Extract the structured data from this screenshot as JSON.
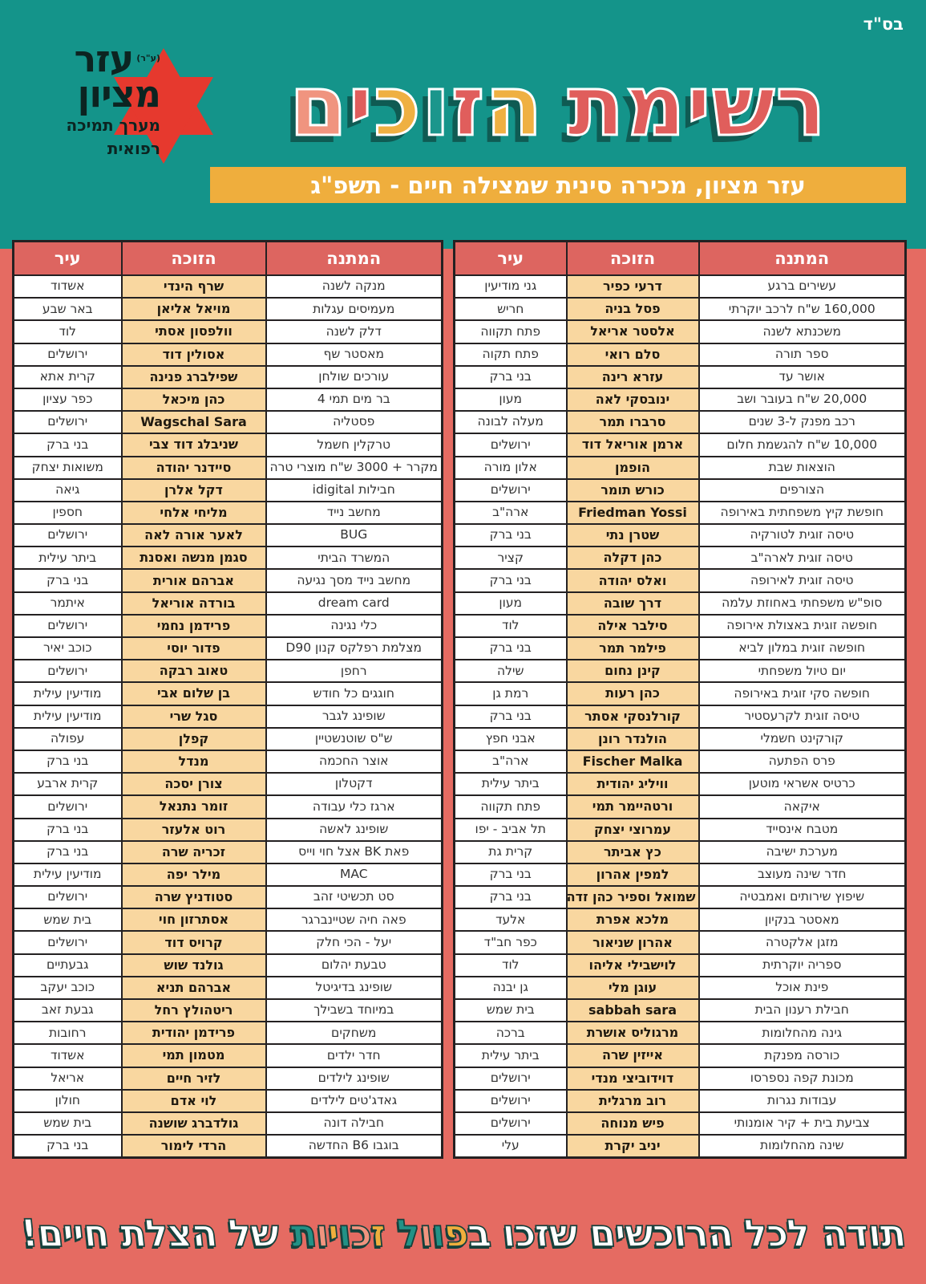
{
  "page": {
    "bsd": "בס\"ד"
  },
  "logo": {
    "org_word1": "עזר",
    "org_suffix": "(ע\"ר)",
    "org_word2": "מציון",
    "tagline_line1": "מערך תמיכה",
    "tagline_line2": "רפואית"
  },
  "title": {
    "words": [
      {
        "letters": [
          {
            "ch": "ר",
            "color": "#e05e5c"
          },
          {
            "ch": "ש",
            "color": "#e05e5c"
          },
          {
            "ch": "י",
            "color": "#e05e5c"
          },
          {
            "ch": "מ",
            "color": "#e05e5c"
          },
          {
            "ch": "ת",
            "color": "#e05e5c"
          }
        ]
      },
      {
        "letters": [
          {
            "ch": "ה",
            "color": "#efb042"
          },
          {
            "ch": "ז",
            "color": "#e05e5c"
          },
          {
            "ch": "ו",
            "color": "#1b968c"
          },
          {
            "ch": "כ",
            "color": "#efb042"
          },
          {
            "ch": "י",
            "color": "#e05e5c"
          },
          {
            "ch": "ם",
            "color": "#f0947f"
          }
        ]
      }
    ]
  },
  "subtitle": {
    "text": "עזר מציון, מכירה סינית שמצילה חיים - תשפ\"ג"
  },
  "tables": {
    "headers": {
      "gift": "המתנה",
      "winner": "הזוכה",
      "city": "עיר"
    },
    "right": {
      "rows": [
        {
          "gift": "עשירים ברגע",
          "winner": "דרעי כפיר",
          "city": "גני מודיעין"
        },
        {
          "gift": "160,000 ש\"ח לרכב יוקרתי",
          "winner": "פסל בניה",
          "city": "חריש"
        },
        {
          "gift": "משכנתא לשנה",
          "winner": "אלסטר אריאל",
          "city": "פתח תקווה"
        },
        {
          "gift": "ספר תורה",
          "winner": "סלם רואי",
          "city": "פתח תקוה"
        },
        {
          "gift": "אושר עד",
          "winner": "עזרא רינה",
          "city": "בני ברק"
        },
        {
          "gift": "20,000 ש\"ח בעובר ושב",
          "winner": "ינובסקי לאה",
          "city": "מעון"
        },
        {
          "gift": "רכב מפנק ל-3 שנים",
          "winner": "סרברו תמר",
          "city": "מעלה לבונה"
        },
        {
          "gift": "10,000 ש\"ח להגשמת חלום",
          "winner": "ארמן אוריאל דוד",
          "city": "ירושלים"
        },
        {
          "gift": "הוצאות שבת",
          "winner": "הופמן",
          "city": "אלון מורה"
        },
        {
          "gift": "הצורפים",
          "winner": "כורש תומר",
          "city": "ירושלים"
        },
        {
          "gift": "חופשת קיץ משפחתית באירופה",
          "winner": "Friedman Yossi",
          "city": "ארה\"ב"
        },
        {
          "gift": "טיסה זוגית לטורקיה",
          "winner": "שטרן נתי",
          "city": "בני ברק"
        },
        {
          "gift": "טיסה זוגית לארה\"ב",
          "winner": "כהן דקלה",
          "city": "קציר"
        },
        {
          "gift": "טיסה זוגית לאירופה",
          "winner": "ואלס יהודה",
          "city": "בני ברק"
        },
        {
          "gift": "סופ\"ש משפחתי באחוזת עלמה",
          "winner": "דרך שובה",
          "city": "מעון"
        },
        {
          "gift": "חופשה זוגית באצולת אירופה",
          "winner": "סילבר אילה",
          "city": "לוד"
        },
        {
          "gift": "חופשה זוגית במלון לביא",
          "winner": "פילמר תמר",
          "city": "בני ברק"
        },
        {
          "gift": "יום טיול משפחתי",
          "winner": "קינן נחום",
          "city": "שילה"
        },
        {
          "gift": "חופשה סקי זוגית באירופה",
          "winner": "כהן רעות",
          "city": "רמת גן"
        },
        {
          "gift": "טיסה זוגית לקרעסטיר",
          "winner": "קורלנסקי אסתר",
          "city": "בני ברק"
        },
        {
          "gift": "קורקינט חשמלי",
          "winner": "הולנדר רונן",
          "city": "אבני חפץ"
        },
        {
          "gift": "פרס הפתעה",
          "winner": "Fischer Malka",
          "city": "ארה\"ב"
        },
        {
          "gift": "כרטיס אשראי מוטען",
          "winner": "וויליג יהודית",
          "city": "ביתר עילית"
        },
        {
          "gift": "איקאה",
          "winner": "ורטהיימר תמי",
          "city": "פתח תקווה"
        },
        {
          "gift": "מטבח אינסייד",
          "winner": "עמרוצי יצחק",
          "city": "תל אביב - יפו"
        },
        {
          "gift": "מערכת ישיבה",
          "winner": "כץ אביתר",
          "city": "קרית גת"
        },
        {
          "gift": "חדר שינה מעוצב",
          "winner": "למפין אהרון",
          "city": "בני ברק"
        },
        {
          "gift": "שיפוץ שירותים ואמבטיה",
          "winner": "שמואל וספיר כהן זדה",
          "city": "בני ברק"
        },
        {
          "gift": "מאסטר בנקיון",
          "winner": "מלכא אפרת",
          "city": "אלעד"
        },
        {
          "gift": "מזגן אלקטרה",
          "winner": "אהרון שניאור",
          "city": "כפר חב\"ד"
        },
        {
          "gift": "ספריה יוקרתית",
          "winner": "לוישבילי אליהו",
          "city": "לוד"
        },
        {
          "gift": "פינת אוכל",
          "winner": "עוגן מלי",
          "city": "גן יבנה"
        },
        {
          "gift": "חבילת רענון הבית",
          "winner": "sabbah sara",
          "city": "בית שמש"
        },
        {
          "gift": "גינה מהחלומות",
          "winner": "מרגוליס אושרת",
          "city": "ברכה"
        },
        {
          "gift": "כורסה מפנקת",
          "winner": "אייזין שרה",
          "city": "ביתר עילית"
        },
        {
          "gift": "מכונת קפה נספרסו",
          "winner": "דוידוביצי מנדי",
          "city": "ירושלים"
        },
        {
          "gift": "עבודות נגרות",
          "winner": "רוב מרגלית",
          "city": "ירושלים"
        },
        {
          "gift": "צביעת בית + קיר אומנותי",
          "winner": "פיש מנוחה",
          "city": "ירושלים"
        },
        {
          "gift": "שינה מהחלומות",
          "winner": "יניב יקרת",
          "city": "עלי"
        }
      ]
    },
    "left": {
      "rows": [
        {
          "gift": "מנקה לשנה",
          "winner": "שרף הינדי",
          "city": "אשדוד"
        },
        {
          "gift": "מעמיסים עגלות",
          "winner": "מויאל אליאן",
          "city": "באר שבע"
        },
        {
          "gift": "דלק לשנה",
          "winner": "וולפסון אסתי",
          "city": "לוד"
        },
        {
          "gift": "מאסטר שף",
          "winner": "אסולין דוד",
          "city": "ירושלים"
        },
        {
          "gift": "עורכים שולחן",
          "winner": "שפילברג פנינה",
          "city": "קרית אתא"
        },
        {
          "gift": "בר מים תמי 4",
          "winner": "כהן מיכאל",
          "city": "כפר עציון"
        },
        {
          "gift": "פסטליה",
          "winner": "Wagschal Sara",
          "city": "ירושלים"
        },
        {
          "gift": "טרקלין חשמל",
          "winner": "שניבלג דוד צבי",
          "city": "בני ברק"
        },
        {
          "gift": "מקרר + 3000 ש\"ח מוצרי טרה",
          "winner": "סיידנר יהודה",
          "city": "משואות יצחק"
        },
        {
          "gift": "חבילות idigital",
          "winner": "דקל אלרן",
          "city": "גיאה"
        },
        {
          "gift": "מחשב נייד",
          "winner": "מליחי אלחי",
          "city": "חספין"
        },
        {
          "gift": "BUG",
          "winner": "לאער אורה לאה",
          "city": "ירושלים"
        },
        {
          "gift": "המשרד הביתי",
          "winner": "סגמן מנשה ואסנת",
          "city": "ביתר עילית"
        },
        {
          "gift": "מחשב נייד מסך נגיעה",
          "winner": "אברהם אורית",
          "city": "בני ברק"
        },
        {
          "gift": "dream card",
          "winner": "בורדה אוריאל",
          "city": "איתמר"
        },
        {
          "gift": "כלי נגינה",
          "winner": "פרידמן נחמי",
          "city": "ירושלים"
        },
        {
          "gift": "מצלמת רפלקס קנון D90",
          "winner": "פדור יוסי",
          "city": "כוכב יאיר"
        },
        {
          "gift": "רחפן",
          "winner": "טאוב רבקה",
          "city": "ירושלים"
        },
        {
          "gift": "חוגגים כל חודש",
          "winner": "בן שלום אבי",
          "city": "מודיעין עילית"
        },
        {
          "gift": "שופינג לגבר",
          "winner": "סגל שרי",
          "city": "מודיעין עילית"
        },
        {
          "gift": "ש\"ס שוטנשטיין",
          "winner": "קפלן",
          "city": "עפולה"
        },
        {
          "gift": "אוצר החכמה",
          "winner": "מנדל",
          "city": "בני ברק"
        },
        {
          "gift": "דקטלון",
          "winner": "צורן יסכה",
          "city": "קרית ארבע"
        },
        {
          "gift": "ארגז כלי עבודה",
          "winner": "זומר נתנאל",
          "city": "ירושלים"
        },
        {
          "gift": "שופינג לאשה",
          "winner": "רוט אלעזר",
          "city": "בני ברק"
        },
        {
          "gift": "פאת BK אצל חוי וייס",
          "winner": "זכריה שרה",
          "city": "בני ברק"
        },
        {
          "gift": "MAC",
          "winner": "מילר יפה",
          "city": "מודיעין עילית"
        },
        {
          "gift": "סט תכשיטי זהב",
          "winner": "סטודניץ שרה",
          "city": "ירושלים"
        },
        {
          "gift": "פאה חיה שטיינברגר",
          "winner": "אסתרזון חוי",
          "city": "בית שמש"
        },
        {
          "gift": "יעל - הכי חלק",
          "winner": "קרויס דוד",
          "city": "ירושלים"
        },
        {
          "gift": "טבעת יהלום",
          "winner": "גולנד שוש",
          "city": "גבעתיים"
        },
        {
          "gift": "שופינג בדיגיטל",
          "winner": "אברהם תניא",
          "city": "כוכב יעקב"
        },
        {
          "gift": "במיוחד בשבילך",
          "winner": "ריטהולץ רחל",
          "city": "גבעת זאב"
        },
        {
          "gift": "משחקים",
          "winner": "פרידמן יהודית",
          "city": "רחובות"
        },
        {
          "gift": "חדר ילדים",
          "winner": "מטמון תמי",
          "city": "אשדוד"
        },
        {
          "gift": "שופינג לילדים",
          "winner": "לזיר חיים",
          "city": "אריאל"
        },
        {
          "gift": "גאדג'טים לילדים",
          "winner": "לוי אדם",
          "city": "חולון"
        },
        {
          "gift": "חבילה דונה",
          "winner": "גולדברג שושנה",
          "city": "בית שמש"
        },
        {
          "gift": "בוגבו B6 החדשה",
          "winner": "הרדי לימור",
          "city": "בני ברק"
        }
      ]
    }
  },
  "footer": {
    "segments": [
      {
        "text": "תודה לכל הרוכשים שזכו ב",
        "color": "#ffffff"
      },
      {
        "text": "פ",
        "color": "#efae3d"
      },
      {
        "text": "ו",
        "color": "#239186"
      },
      {
        "text": "ו",
        "color": "#f0947f"
      },
      {
        "text": "ל",
        "color": "#239186"
      },
      {
        "text": " ",
        "color": "#ffffff"
      },
      {
        "text": "ז",
        "color": "#efae3d"
      },
      {
        "text": "כ",
        "color": "#f0947f"
      },
      {
        "text": "ו",
        "color": "#239186"
      },
      {
        "text": "י",
        "color": "#efae3d"
      },
      {
        "text": "ו",
        "color": "#f0947f"
      },
      {
        "text": "ת",
        "color": "#239186"
      },
      {
        "text": " של הצלת חיים!",
        "color": "#ffffff"
      }
    ]
  }
}
